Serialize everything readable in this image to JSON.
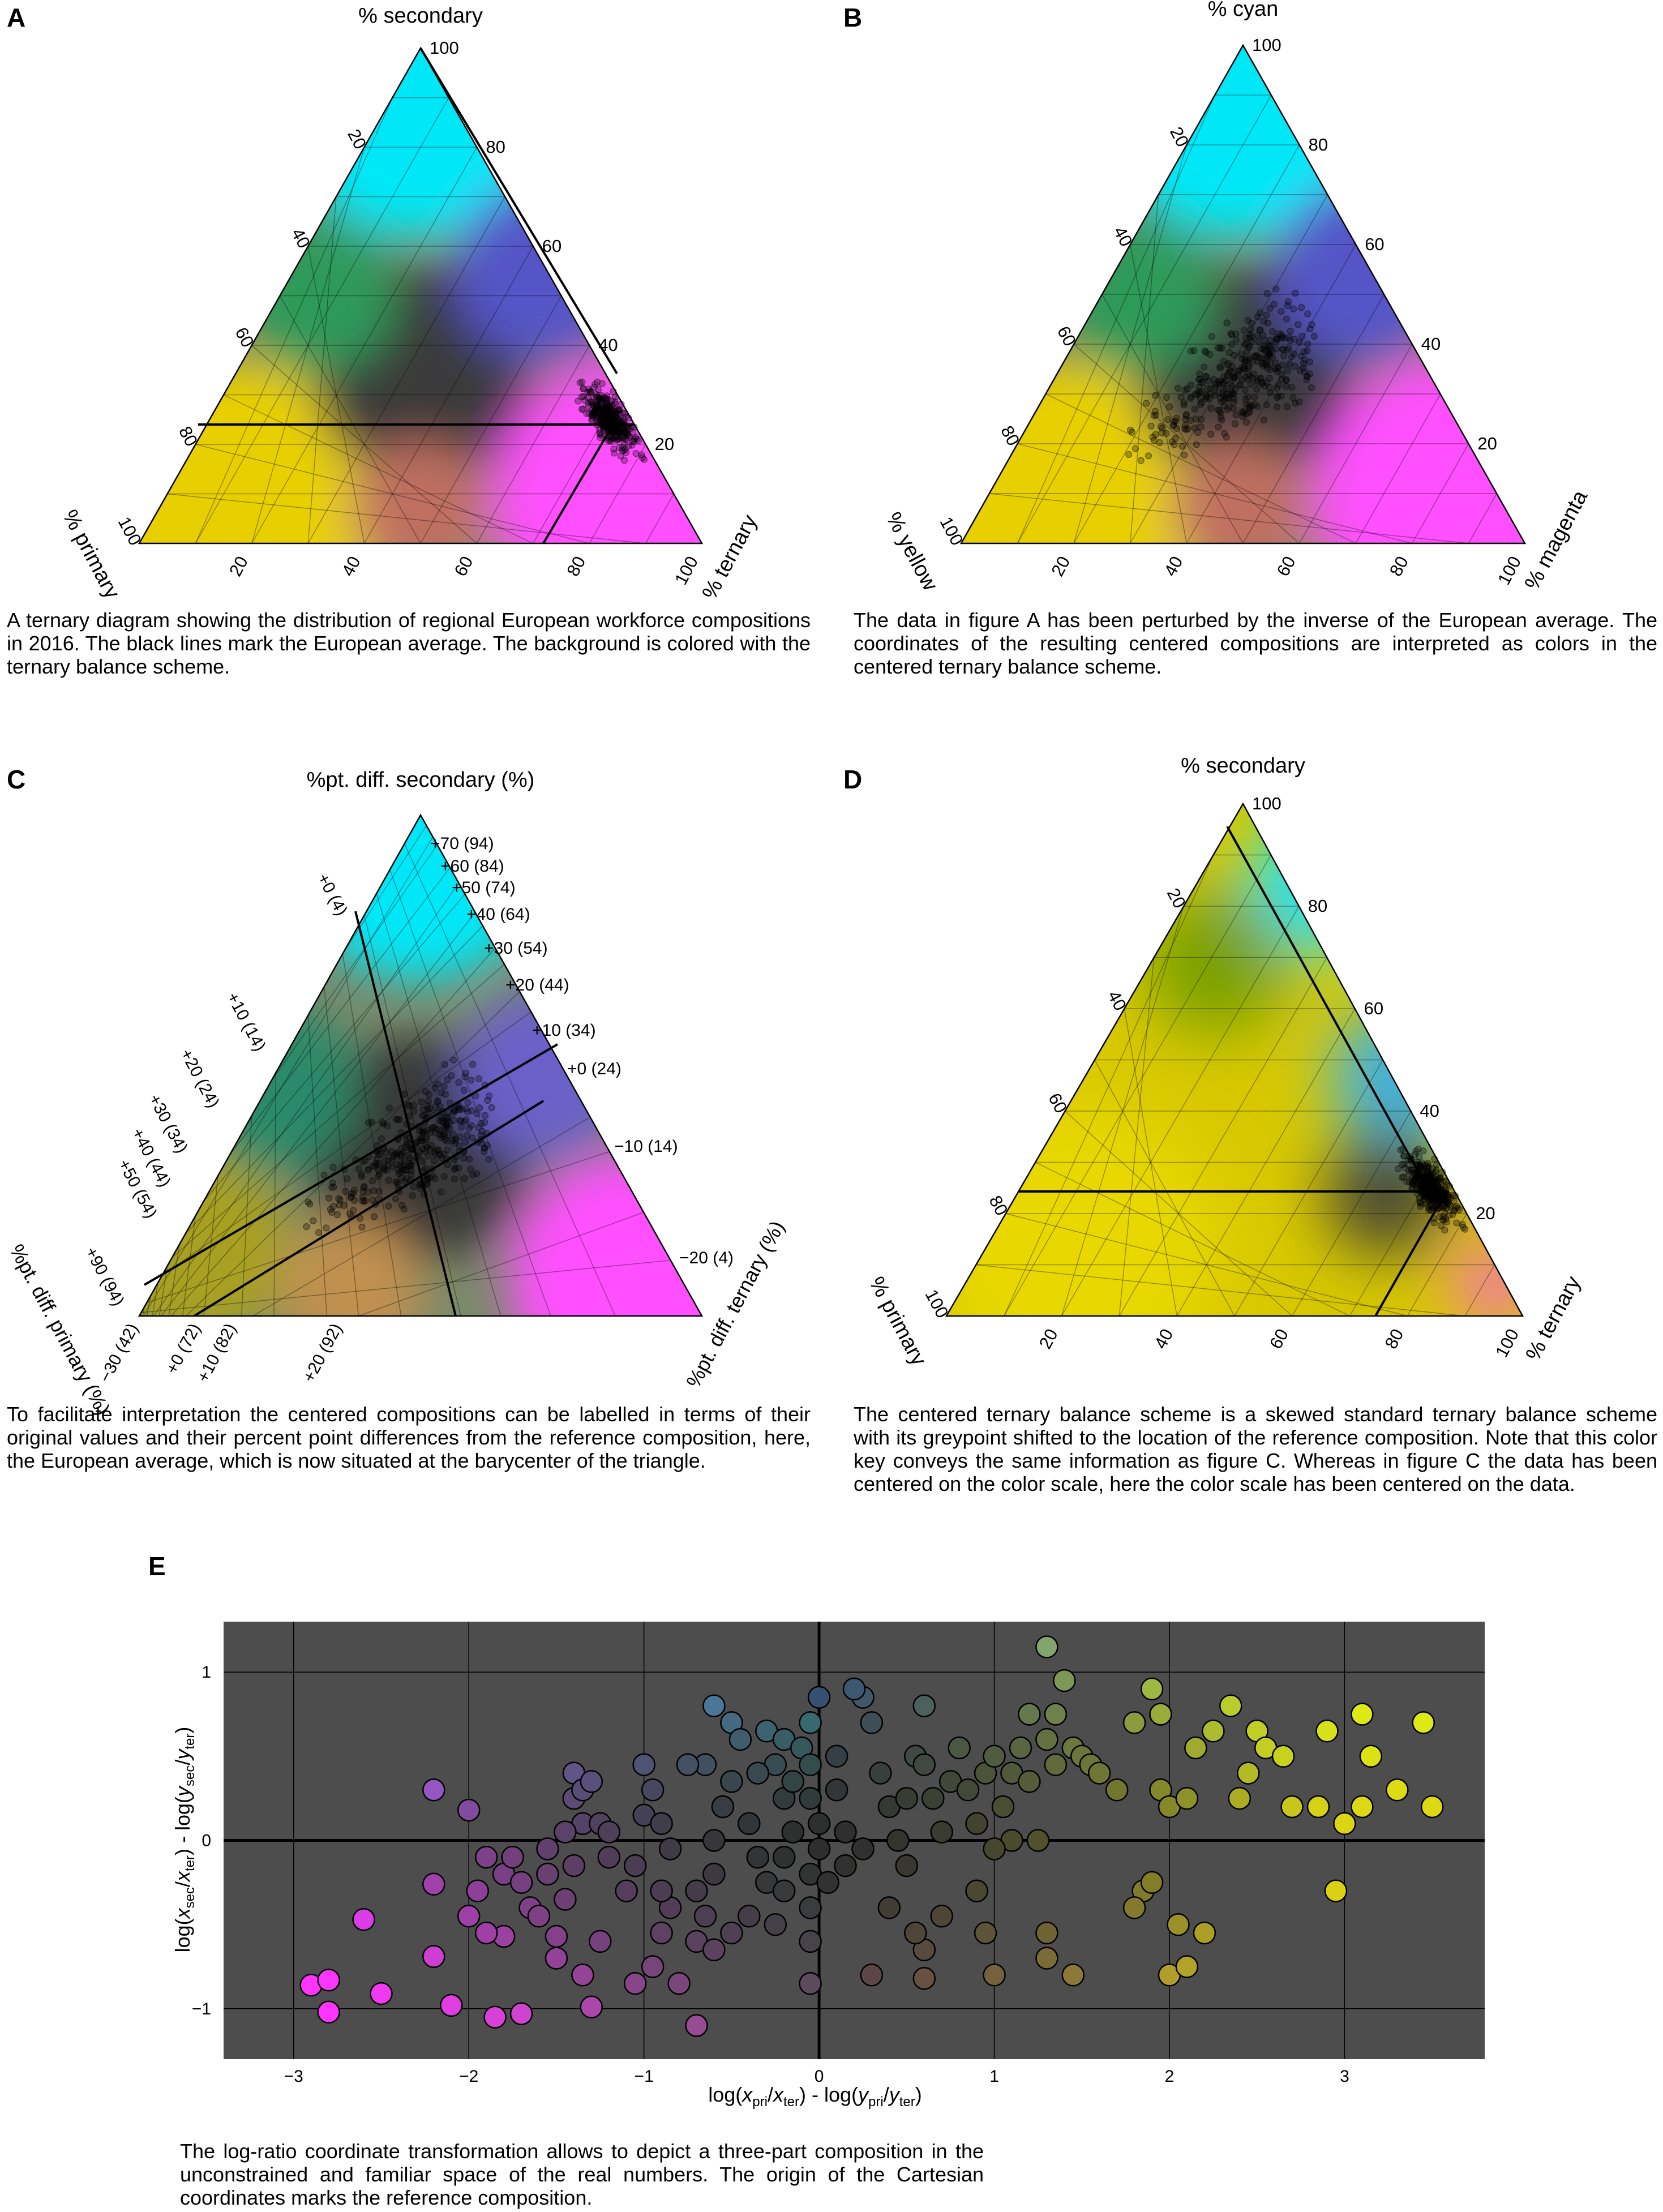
{
  "panels": {
    "A": {
      "label": "A",
      "axis_top": "% secondary",
      "axis_left": "% primary",
      "axis_right": "% ternary",
      "caption": "A ternary diagram showing the distribution of regional European workforce compositions in 2016. The black lines mark the European average. The background is colored with the ternary balance scheme."
    },
    "B": {
      "label": "B",
      "axis_top": "% cyan",
      "axis_left": "% yellow",
      "axis_right": "% magenta",
      "caption": "The data in figure A has been perturbed by the inverse of the European average. The coordinates of the resulting centered compositions are interpreted as colors in the centered ternary balance scheme."
    },
    "C": {
      "label": "C",
      "axis_top": "%pt. diff. secondary (%)",
      "axis_left": "%pt. diff. primary (%)",
      "axis_right": "%pt. diff. ternary (%)",
      "ticks_right": [
        "+70 (94)",
        "+60 (84)",
        "+50 (74)",
        "+40 (64)",
        "+30 (54)",
        "+20 (44)",
        "+10 (34)",
        "+0 (24)",
        "−10 (14)",
        "−20 (4)"
      ],
      "ticks_left": [
        "+0 (4)",
        "+10 (14)",
        "+20 (24)",
        "+30 (34)",
        "+40 (44)",
        "+50 (54)",
        "+90 (94)"
      ],
      "ticks_bottom": [
        "−30 (42)",
        "+0 (72)",
        "+10 (82)",
        "+20 (92)"
      ],
      "caption": "To facilitate interpretation the centered compositions can be labelled in terms of their original values and their percent point differences from the reference composition, here, the European average, which is now situated at the barycenter of the triangle."
    },
    "D": {
      "label": "D",
      "axis_top": "% secondary",
      "axis_left": "% primary",
      "axis_right": "% ternary",
      "caption": "The centered ternary balance scheme is a skewed standard ternary balance scheme with its greypoint shifted to the location of the reference composition. Note that this color key conveys the same information as figure C. Whereas in figure C the data has been centered on the color scale, here the color scale has been centered on the data."
    },
    "E": {
      "label": "E",
      "caption": "The log-ratio coordinate transformation allows to depict a three-part composition in the unconstrained and familiar space of the real numbers. The origin of the Cartesian coordinates marks the reference composition."
    }
  },
  "colors": {
    "cyan": "#00f0ff",
    "magenta": "#ff50ff",
    "yellow": "#f0e000",
    "grey_center": "#444444",
    "panel_e_bg": "#4d4d4d"
  },
  "chart_data": [
    {
      "type": "scatter",
      "kind": "ternary",
      "panel": "A",
      "axes": [
        "% primary",
        "% secondary",
        "% ternary"
      ],
      "ticks": [
        20,
        40,
        60,
        80,
        100
      ],
      "reference_lines": {
        "primary": 4,
        "secondary": 24,
        "ternary": 72
      },
      "points_summary": "regional compositions clustered near primary 2-10%, secondary 15-35%, ternary 60-80%"
    },
    {
      "type": "scatter",
      "kind": "ternary",
      "panel": "B",
      "axes": [
        "% yellow",
        "% cyan",
        "% magenta"
      ],
      "ticks": [
        20,
        40,
        60,
        80,
        100
      ]
    },
    {
      "type": "scatter",
      "kind": "ternary",
      "panel": "C",
      "axes": [
        "%pt. diff. primary (%)",
        "%pt. diff. secondary (%)",
        "%pt. diff. ternary (%)"
      ]
    },
    {
      "type": "scatter",
      "kind": "ternary",
      "panel": "D",
      "axes": [
        "% primary",
        "% secondary",
        "% ternary"
      ],
      "ticks": [
        20,
        40,
        60,
        80,
        100
      ],
      "reference_lines": {
        "primary": 4,
        "secondary": 24,
        "ternary": 72
      }
    },
    {
      "type": "scatter",
      "panel": "E",
      "xlabel": "log(x_pri/x_ter) - log(y_pri/y_ter)",
      "ylabel": "log(x_sec/x_ter) - log(y_sec/y_ter)",
      "xlim": [
        -3.4,
        3.8
      ],
      "ylim": [
        -1.3,
        1.3
      ],
      "xticks": [
        -3,
        -2,
        -1,
        0,
        1,
        2,
        3
      ],
      "yticks": [
        -1,
        0,
        1
      ],
      "xtick_labels": [
        "−3",
        "−2",
        "−1",
        "0",
        "1",
        "2",
        "3"
      ],
      "ytick_labels": [
        "−1",
        "0",
        "1"
      ],
      "grid": true,
      "points": [
        [
          -2.9,
          -0.86
        ],
        [
          -2.8,
          -0.83
        ],
        [
          -2.8,
          -1.02
        ],
        [
          -2.5,
          -0.91
        ],
        [
          -2.6,
          -0.47
        ],
        [
          -2.2,
          0.3
        ],
        [
          -2.0,
          0.18
        ],
        [
          -2.2,
          -0.69
        ],
        [
          -2.1,
          -0.98
        ],
        [
          -2.2,
          -0.26
        ],
        [
          -1.85,
          -1.05
        ],
        [
          -1.7,
          -1.03
        ],
        [
          -1.3,
          -0.99
        ],
        [
          -1.35,
          -0.8
        ],
        [
          -1.5,
          -0.7
        ],
        [
          -1.5,
          -0.57
        ],
        [
          -1.8,
          -0.57
        ],
        [
          -1.9,
          -0.55
        ],
        [
          -2.0,
          -0.45
        ],
        [
          -1.95,
          -0.3
        ],
        [
          -1.9,
          -0.1
        ],
        [
          -1.8,
          -0.2
        ],
        [
          -1.7,
          -0.25
        ],
        [
          -1.75,
          -0.1
        ],
        [
          -1.65,
          -0.4
        ],
        [
          -1.6,
          -0.45
        ],
        [
          -1.55,
          -0.2
        ],
        [
          -1.45,
          -0.35
        ],
        [
          -1.4,
          -0.15
        ],
        [
          -1.35,
          0.1
        ],
        [
          -1.4,
          0.25
        ],
        [
          -1.4,
          0.4
        ],
        [
          -1.35,
          0.3
        ],
        [
          -1.3,
          0.35
        ],
        [
          -1.25,
          0.1
        ],
        [
          -1.2,
          0.05
        ],
        [
          -1.2,
          -0.1
        ],
        [
          -1.1,
          -0.3
        ],
        [
          -1.05,
          -0.15
        ],
        [
          -1.0,
          0.15
        ],
        [
          -1.0,
          0.45
        ],
        [
          -0.95,
          0.3
        ],
        [
          -0.9,
          0.1
        ],
        [
          -0.85,
          -0.05
        ],
        [
          -0.85,
          -0.4
        ],
        [
          -0.9,
          -0.55
        ],
        [
          -0.95,
          -0.75
        ],
        [
          -0.8,
          -0.85
        ],
        [
          -0.7,
          -0.6
        ],
        [
          -0.65,
          -0.45
        ],
        [
          -0.7,
          -0.3
        ],
        [
          -0.6,
          -0.2
        ],
        [
          -0.6,
          0.0
        ],
        [
          -0.55,
          0.2
        ],
        [
          -0.5,
          0.35
        ],
        [
          -0.65,
          0.45
        ],
        [
          -0.75,
          0.45
        ],
        [
          -0.6,
          0.8
        ],
        [
          -0.5,
          0.7
        ],
        [
          -0.45,
          0.6
        ],
        [
          -0.4,
          0.1
        ],
        [
          -0.35,
          -0.1
        ],
        [
          -0.3,
          -0.25
        ],
        [
          -0.4,
          -0.45
        ],
        [
          -0.5,
          -0.55
        ],
        [
          -0.6,
          -0.65
        ],
        [
          -0.7,
          -1.1
        ],
        [
          -0.25,
          -0.5
        ],
        [
          -0.2,
          -0.3
        ],
        [
          -0.2,
          -0.1
        ],
        [
          -0.15,
          0.05
        ],
        [
          -0.2,
          0.25
        ],
        [
          -0.25,
          0.45
        ],
        [
          -0.3,
          0.65
        ],
        [
          -0.2,
          0.6
        ],
        [
          -0.1,
          0.55
        ],
        [
          -0.05,
          0.45
        ],
        [
          -0.05,
          0.25
        ],
        [
          0.0,
          0.1
        ],
        [
          0.0,
          -0.05
        ],
        [
          -0.05,
          -0.2
        ],
        [
          -0.05,
          -0.4
        ],
        [
          -0.05,
          -0.6
        ],
        [
          -0.05,
          -0.85
        ],
        [
          -0.05,
          0.7
        ],
        [
          0.0,
          0.85
        ],
        [
          0.1,
          0.5
        ],
        [
          0.1,
          0.3
        ],
        [
          0.15,
          0.05
        ],
        [
          0.15,
          -0.15
        ],
        [
          0.25,
          0.85
        ],
        [
          0.2,
          0.9
        ],
        [
          0.3,
          0.7
        ],
        [
          0.35,
          0.4
        ],
        [
          0.4,
          0.2
        ],
        [
          0.45,
          0.0
        ],
        [
          0.5,
          -0.15
        ],
        [
          0.5,
          0.25
        ],
        [
          0.55,
          0.5
        ],
        [
          0.6,
          0.8
        ],
        [
          0.6,
          0.45
        ],
        [
          0.65,
          0.25
        ],
        [
          0.7,
          0.05
        ],
        [
          0.75,
          0.35
        ],
        [
          0.8,
          0.55
        ],
        [
          0.85,
          0.3
        ],
        [
          0.9,
          0.1
        ],
        [
          0.95,
          0.4
        ],
        [
          1.0,
          0.5
        ],
        [
          1.05,
          0.2
        ],
        [
          1.1,
          0.4
        ],
        [
          1.15,
          0.55
        ],
        [
          1.2,
          0.35
        ],
        [
          1.25,
          0.0
        ],
        [
          1.1,
          0.0
        ],
        [
          1.0,
          -0.05
        ],
        [
          1.2,
          0.75
        ],
        [
          1.3,
          0.6
        ],
        [
          1.35,
          0.45
        ],
        [
          1.4,
          0.95
        ],
        [
          1.3,
          1.15
        ],
        [
          1.35,
          0.75
        ],
        [
          1.45,
          0.55
        ],
        [
          1.5,
          0.5
        ],
        [
          1.55,
          0.45
        ],
        [
          1.6,
          0.4
        ],
        [
          1.7,
          0.3
        ],
        [
          1.8,
          0.7
        ],
        [
          1.9,
          0.9
        ],
        [
          1.95,
          0.75
        ],
        [
          1.95,
          0.3
        ],
        [
          2.0,
          0.2
        ],
        [
          2.1,
          0.25
        ],
        [
          2.15,
          0.55
        ],
        [
          2.25,
          0.65
        ],
        [
          2.35,
          0.8
        ],
        [
          2.4,
          0.25
        ],
        [
          2.45,
          0.4
        ],
        [
          2.5,
          0.65
        ],
        [
          2.55,
          0.55
        ],
        [
          2.65,
          0.5
        ],
        [
          2.7,
          0.2
        ],
        [
          2.85,
          0.2
        ],
        [
          2.9,
          0.65
        ],
        [
          3.1,
          0.75
        ],
        [
          3.15,
          0.5
        ],
        [
          3.1,
          0.2
        ],
        [
          3.3,
          0.3
        ],
        [
          3.45,
          0.7
        ],
        [
          3.5,
          0.2
        ],
        [
          3.0,
          0.1
        ],
        [
          2.95,
          -0.3
        ],
        [
          2.2,
          -0.55
        ],
        [
          2.05,
          -0.5
        ],
        [
          1.85,
          -0.3
        ],
        [
          1.8,
          -0.4
        ],
        [
          2.0,
          -0.8
        ],
        [
          2.1,
          -0.75
        ],
        [
          1.9,
          -0.25
        ],
        [
          0.9,
          -0.3
        ],
        [
          0.6,
          -0.65
        ],
        [
          0.55,
          -0.55
        ],
        [
          0.3,
          -0.8
        ],
        [
          0.6,
          -0.82
        ],
        [
          1.0,
          -0.8
        ],
        [
          1.3,
          -0.7
        ],
        [
          1.45,
          -0.8
        ],
        [
          1.3,
          -0.55
        ],
        [
          0.95,
          -0.55
        ],
        [
          0.7,
          -0.45
        ],
        [
          0.4,
          -0.4
        ],
        [
          -1.55,
          -0.05
        ],
        [
          -1.25,
          -0.6
        ],
        [
          -1.05,
          -0.85
        ],
        [
          -0.9,
          -0.3
        ],
        [
          -0.35,
          0.4
        ],
        [
          -0.15,
          0.35
        ],
        [
          0.05,
          -0.25
        ],
        [
          0.25,
          -0.05
        ],
        [
          -1.45,
          0.05
        ]
      ]
    }
  ]
}
